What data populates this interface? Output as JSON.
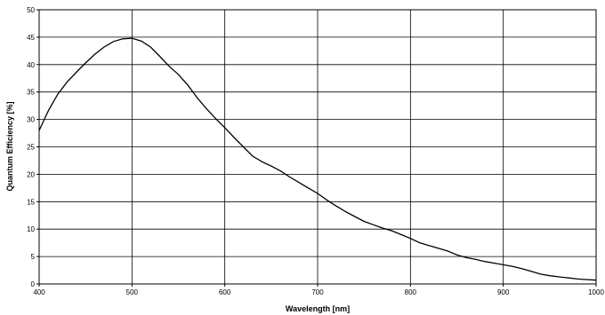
{
  "chart_data": {
    "type": "line",
    "title": "",
    "xlabel": "Wavelength [nm]",
    "ylabel": "Quantum Efficiency [%]",
    "xlim": [
      400,
      1000
    ],
    "ylim": [
      0,
      50
    ],
    "x_ticks": [
      400,
      500,
      600,
      700,
      800,
      900,
      1000
    ],
    "y_ticks": [
      0,
      5,
      10,
      15,
      20,
      25,
      30,
      35,
      40,
      45,
      50
    ],
    "grid": true,
    "series": [
      {
        "x": [
          400,
          410,
          420,
          430,
          440,
          450,
          460,
          470,
          480,
          490,
          500,
          510,
          520,
          530,
          540,
          550,
          560,
          570,
          580,
          590,
          600,
          610,
          620,
          630,
          640,
          650,
          660,
          670,
          680,
          690,
          700,
          710,
          720,
          730,
          740,
          750,
          760,
          770,
          780,
          790,
          800,
          810,
          820,
          830,
          840,
          850,
          860,
          870,
          880,
          890,
          900,
          910,
          920,
          930,
          940,
          950,
          960,
          970,
          980,
          990,
          1000
        ],
        "y": [
          28.0,
          31.6,
          34.6,
          36.8,
          38.6,
          40.3,
          41.9,
          43.2,
          44.2,
          44.7,
          44.8,
          44.3,
          43.2,
          41.5,
          39.7,
          38.2,
          36.3,
          34.0,
          32.0,
          30.2,
          28.5,
          26.7,
          25.0,
          23.3,
          22.3,
          21.5,
          20.6,
          19.5,
          18.5,
          17.5,
          16.5,
          15.3,
          14.2,
          13.2,
          12.3,
          11.4,
          10.8,
          10.2,
          9.7,
          9.0,
          8.3,
          7.5,
          7.0,
          6.5,
          6.0,
          5.3,
          4.8,
          4.5,
          4.1,
          3.8,
          3.5,
          3.2,
          2.8,
          2.3,
          1.8,
          1.5,
          1.3,
          1.1,
          0.9,
          0.8,
          0.7
        ]
      }
    ]
  }
}
